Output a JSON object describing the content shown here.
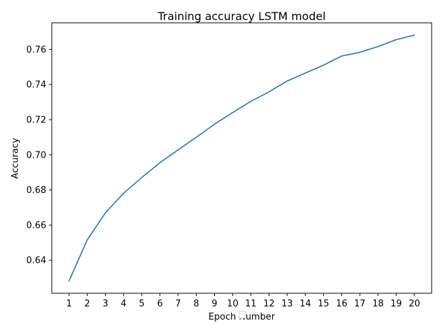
{
  "chart_data": {
    "type": "line",
    "title": "Training accuracy LSTM model",
    "xlabel": "Epoch Number",
    "ylabel": "Accuracy",
    "x": [
      1,
      2,
      3,
      4,
      5,
      6,
      7,
      8,
      9,
      10,
      11,
      12,
      13,
      14,
      15,
      16,
      17,
      18,
      19,
      20
    ],
    "series": [
      {
        "values": [
          0.6282,
          0.6516,
          0.667,
          0.6781,
          0.6871,
          0.6955,
          0.7028,
          0.71,
          0.7174,
          0.724,
          0.7304,
          0.7358,
          0.742,
          0.7465,
          0.751,
          0.7562,
          0.7583,
          0.7616,
          0.7655,
          0.7681
        ],
        "color": "#1f77b4"
      }
    ],
    "xticks": [
      "1",
      "2",
      "3",
      "4",
      "5",
      "6",
      "7",
      "8",
      "9",
      "10",
      "11",
      "12",
      "13",
      "14",
      "15",
      "16",
      "17",
      "18",
      "19",
      "20"
    ],
    "yticks": [
      0.64,
      0.66,
      0.68,
      0.7,
      0.72,
      0.74,
      0.76
    ],
    "ytick_labels": [
      "0.64",
      "0.66",
      "0.68",
      "0.70",
      "0.72",
      "0.74",
      "0.76"
    ],
    "xlim": [
      0.05,
      20.95
    ],
    "ylim": [
      0.6212,
      0.7751
    ],
    "grid": false,
    "legend": "bottom-center, empty"
  }
}
